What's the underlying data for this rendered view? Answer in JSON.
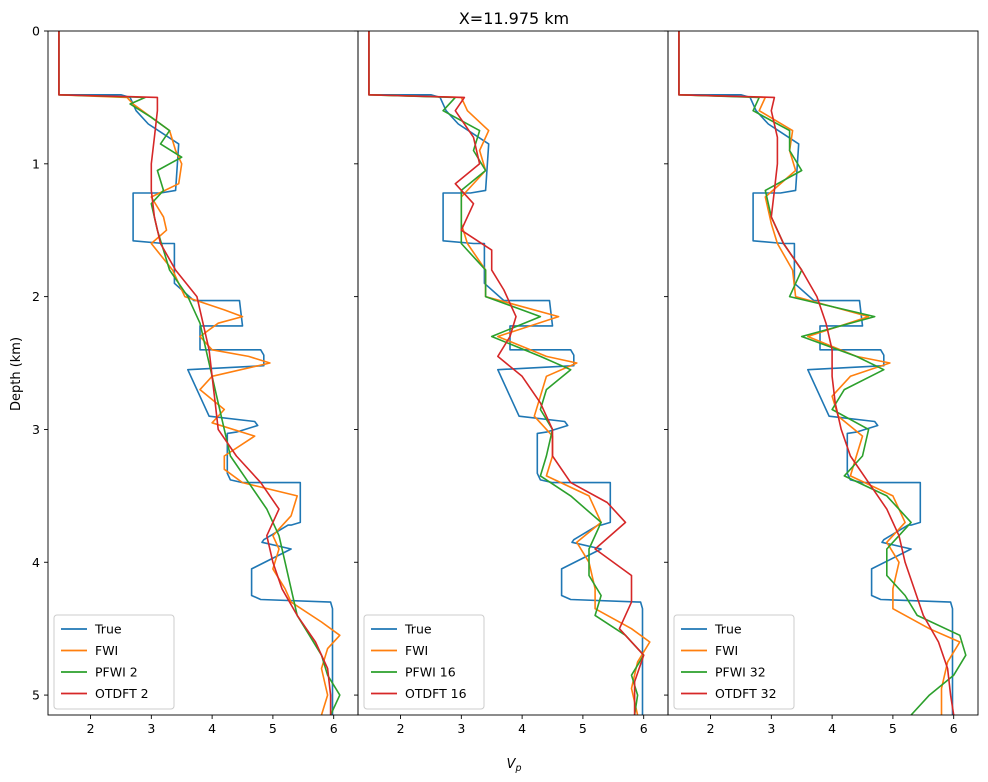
{
  "chart_data": {
    "type": "line",
    "title": "X=11.975 km",
    "xlabel": "V",
    "xlabel_subscript": "p",
    "ylabel": "Depth (km)",
    "xlim": [
      1.3,
      6.4
    ],
    "ylim": [
      5.15,
      0
    ],
    "xticks": [
      2,
      3,
      4,
      5,
      6
    ],
    "yticks": [
      0,
      1,
      2,
      3,
      4,
      5
    ],
    "grid": false,
    "legend_position": "lower-left",
    "colors": {
      "True": "#1f77b4",
      "FWI": "#ff7f0e",
      "PFWI": "#2ca02c",
      "OTDFT": "#d62728"
    },
    "panels": [
      {
        "series": [
          {
            "name": "True",
            "color": "#1f77b4",
            "depth": [
              0,
              0.48,
              0.48,
              0.5,
              0.6,
              0.7,
              0.85,
              0.85,
              1.2,
              1.22,
              1.22,
              1.58,
              1.6,
              1.6,
              1.9,
              2.03,
              2.03,
              2.22,
              2.22,
              2.4,
              2.4,
              2.44,
              2.52,
              2.55,
              2.7,
              2.9,
              2.94,
              2.97,
              3.02,
              3.03,
              3.33,
              3.38,
              3.4,
              3.4,
              3.7,
              3.72,
              3.72,
              3.83,
              3.85,
              3.9,
              4.05,
              4.25,
              4.28,
              4.3,
              4.35,
              5.15
            ],
            "vp": [
              1.48,
              1.48,
              2.5,
              2.65,
              2.75,
              2.95,
              3.45,
              3.45,
              3.4,
              3.15,
              2.7,
              2.7,
              3.2,
              3.38,
              3.38,
              3.7,
              4.45,
              4.5,
              3.8,
              3.8,
              4.8,
              4.85,
              4.85,
              3.6,
              3.75,
              3.95,
              4.7,
              4.75,
              4.4,
              4.25,
              4.25,
              4.3,
              4.5,
              5.45,
              5.45,
              5.3,
              5.25,
              4.85,
              4.82,
              5.3,
              4.65,
              4.65,
              4.8,
              5.95,
              5.98,
              5.98
            ]
          },
          {
            "name": "FWI",
            "color": "#ff7f0e",
            "depth": [
              0,
              0.48,
              0.5,
              0.55,
              0.65,
              0.75,
              0.9,
              1.0,
              1.15,
              1.25,
              1.4,
              1.5,
              1.6,
              1.8,
              2.0,
              2.1,
              2.15,
              2.2,
              2.3,
              2.4,
              2.45,
              2.5,
              2.6,
              2.7,
              2.85,
              2.95,
              3.05,
              3.2,
              3.3,
              3.4,
              3.5,
              3.65,
              3.8,
              3.9,
              4.05,
              4.2,
              4.3,
              4.45,
              4.55,
              4.65,
              4.8,
              5.0,
              5.15
            ],
            "vp": [
              1.48,
              1.48,
              2.6,
              2.7,
              3.0,
              3.3,
              3.4,
              3.5,
              3.45,
              3.0,
              3.2,
              3.25,
              3.0,
              3.35,
              3.55,
              4.2,
              4.5,
              4.1,
              3.8,
              4.0,
              4.6,
              4.95,
              4.0,
              3.8,
              4.2,
              4.0,
              4.7,
              4.2,
              4.2,
              4.5,
              5.4,
              5.3,
              5.0,
              5.1,
              5.0,
              5.2,
              5.3,
              5.8,
              6.1,
              5.9,
              5.8,
              5.9,
              5.8
            ]
          },
          {
            "name": "PFWI 2",
            "color": "#2ca02c",
            "depth": [
              0,
              0.48,
              0.5,
              0.55,
              0.65,
              0.75,
              0.85,
              0.95,
              1.05,
              1.2,
              1.3,
              1.5,
              1.65,
              1.8,
              2.0,
              2.2,
              2.4,
              2.6,
              2.8,
              3.0,
              3.2,
              3.4,
              3.6,
              3.8,
              4.0,
              4.2,
              4.4,
              4.55,
              4.7,
              4.85,
              5.0,
              5.15
            ],
            "vp": [
              1.48,
              1.48,
              2.9,
              2.65,
              3.0,
              3.3,
              3.15,
              3.5,
              3.1,
              3.2,
              3.0,
              3.1,
              3.2,
              3.3,
              3.6,
              3.8,
              3.9,
              4.0,
              4.1,
              4.2,
              4.3,
              4.6,
              4.9,
              5.1,
              5.2,
              5.3,
              5.4,
              5.6,
              5.8,
              5.9,
              6.1,
              5.95
            ]
          },
          {
            "name": "OTDFT 2",
            "color": "#d62728",
            "depth": [
              0,
              0.48,
              0.5,
              0.6,
              0.8,
              1.0,
              1.2,
              1.4,
              1.6,
              1.8,
              2.0,
              2.2,
              2.4,
              2.6,
              2.8,
              3.0,
              3.2,
              3.4,
              3.6,
              3.8,
              4.0,
              4.2,
              4.4,
              4.6,
              4.8,
              5.0,
              5.15
            ],
            "vp": [
              1.48,
              1.48,
              3.1,
              3.1,
              3.05,
              3.0,
              3.0,
              3.05,
              3.15,
              3.4,
              3.75,
              3.85,
              3.95,
              4.0,
              4.05,
              4.1,
              4.4,
              4.8,
              5.1,
              4.9,
              5.0,
              5.15,
              5.4,
              5.7,
              5.9,
              5.95,
              5.95
            ]
          }
        ]
      },
      {
        "series": [
          {
            "name": "True",
            "color": "#1f77b4",
            "depth": [
              0,
              0.48,
              0.48,
              0.5,
              0.6,
              0.7,
              0.85,
              0.85,
              1.2,
              1.22,
              1.22,
              1.58,
              1.6,
              1.6,
              1.9,
              2.03,
              2.03,
              2.22,
              2.22,
              2.4,
              2.4,
              2.44,
              2.52,
              2.55,
              2.7,
              2.9,
              2.94,
              2.97,
              3.02,
              3.03,
              3.33,
              3.38,
              3.4,
              3.4,
              3.7,
              3.72,
              3.72,
              3.83,
              3.85,
              3.9,
              4.05,
              4.25,
              4.28,
              4.3,
              4.35,
              5.15
            ],
            "vp": [
              1.48,
              1.48,
              2.5,
              2.65,
              2.75,
              2.95,
              3.45,
              3.45,
              3.4,
              3.15,
              2.7,
              2.7,
              3.2,
              3.38,
              3.38,
              3.7,
              4.45,
              4.5,
              3.8,
              3.8,
              4.8,
              4.85,
              4.85,
              3.6,
              3.75,
              3.95,
              4.7,
              4.75,
              4.4,
              4.25,
              4.25,
              4.3,
              4.5,
              5.45,
              5.45,
              5.3,
              5.25,
              4.85,
              4.82,
              5.3,
              4.65,
              4.65,
              4.8,
              5.95,
              5.98,
              5.98
            ]
          },
          {
            "name": "FWI",
            "color": "#ff7f0e",
            "depth": [
              0,
              0.48,
              0.5,
              0.6,
              0.75,
              0.9,
              1.05,
              1.25,
              1.45,
              1.6,
              1.8,
              2.0,
              2.15,
              2.3,
              2.45,
              2.5,
              2.6,
              2.75,
              2.9,
              3.05,
              3.2,
              3.35,
              3.5,
              3.7,
              3.85,
              4.0,
              4.2,
              4.35,
              4.5,
              4.6,
              4.75,
              4.95,
              5.15
            ],
            "vp": [
              1.48,
              1.48,
              3.0,
              3.1,
              3.45,
              3.3,
              3.4,
              3.0,
              3.0,
              3.1,
              3.4,
              3.4,
              4.6,
              3.6,
              4.4,
              4.9,
              4.4,
              4.3,
              4.2,
              4.5,
              4.5,
              4.4,
              5.1,
              5.3,
              4.9,
              5.1,
              5.2,
              5.2,
              5.8,
              6.1,
              5.9,
              5.8,
              5.9
            ]
          },
          {
            "name": "PFWI 16",
            "color": "#2ca02c",
            "depth": [
              0,
              0.48,
              0.5,
              0.6,
              0.75,
              0.9,
              1.05,
              1.2,
              1.4,
              1.6,
              1.8,
              2.0,
              2.15,
              2.3,
              2.45,
              2.55,
              2.7,
              2.85,
              3.0,
              3.2,
              3.35,
              3.5,
              3.7,
              3.9,
              4.1,
              4.25,
              4.4,
              4.55,
              4.7,
              4.85,
              5.0,
              5.15
            ],
            "vp": [
              1.48,
              1.48,
              2.9,
              2.7,
              3.3,
              3.2,
              3.4,
              3.0,
              3.0,
              3.0,
              3.4,
              3.4,
              4.3,
              3.5,
              4.3,
              4.8,
              4.4,
              4.3,
              4.5,
              4.4,
              4.3,
              4.8,
              5.3,
              5.1,
              5.1,
              5.3,
              5.2,
              5.7,
              6.0,
              5.8,
              5.9,
              5.85
            ]
          },
          {
            "name": "OTDFT 16",
            "color": "#d62728",
            "depth": [
              0,
              0.48,
              0.5,
              0.6,
              0.8,
              1.0,
              1.15,
              1.3,
              1.5,
              1.65,
              1.8,
              1.95,
              2.15,
              2.3,
              2.45,
              2.6,
              2.8,
              3.0,
              3.2,
              3.4,
              3.55,
              3.7,
              3.9,
              4.1,
              4.3,
              4.5,
              4.7,
              4.9,
              5.15
            ],
            "vp": [
              1.48,
              1.48,
              3.05,
              2.9,
              3.2,
              3.3,
              2.9,
              3.2,
              3.0,
              3.5,
              3.5,
              3.7,
              3.9,
              3.8,
              3.6,
              4.0,
              4.3,
              4.5,
              4.5,
              4.8,
              5.4,
              5.7,
              5.2,
              5.8,
              5.8,
              5.6,
              6.0,
              5.85,
              5.85
            ]
          }
        ]
      },
      {
        "series": [
          {
            "name": "True",
            "color": "#1f77b4",
            "depth": [
              0,
              0.48,
              0.48,
              0.5,
              0.6,
              0.7,
              0.85,
              0.85,
              1.2,
              1.22,
              1.22,
              1.58,
              1.6,
              1.6,
              1.9,
              2.03,
              2.03,
              2.22,
              2.22,
              2.4,
              2.4,
              2.44,
              2.52,
              2.55,
              2.7,
              2.9,
              2.94,
              2.97,
              3.02,
              3.03,
              3.33,
              3.38,
              3.4,
              3.4,
              3.7,
              3.72,
              3.72,
              3.83,
              3.85,
              3.9,
              4.05,
              4.25,
              4.28,
              4.3,
              4.35,
              5.15
            ],
            "vp": [
              1.48,
              1.48,
              2.5,
              2.65,
              2.75,
              2.95,
              3.45,
              3.45,
              3.4,
              3.15,
              2.7,
              2.7,
              3.2,
              3.38,
              3.38,
              3.7,
              4.45,
              4.5,
              3.8,
              3.8,
              4.8,
              4.85,
              4.85,
              3.6,
              3.75,
              3.95,
              4.7,
              4.75,
              4.4,
              4.25,
              4.25,
              4.3,
              4.5,
              5.45,
              5.45,
              5.3,
              5.25,
              4.85,
              4.82,
              5.3,
              4.65,
              4.65,
              4.8,
              5.95,
              5.98,
              5.98
            ]
          },
          {
            "name": "FWI",
            "color": "#ff7f0e",
            "depth": [
              0,
              0.48,
              0.5,
              0.6,
              0.75,
              0.9,
              1.05,
              1.25,
              1.45,
              1.6,
              1.8,
              2.0,
              2.15,
              2.3,
              2.45,
              2.5,
              2.6,
              2.75,
              2.9,
              3.05,
              3.2,
              3.35,
              3.5,
              3.7,
              3.85,
              4.0,
              4.2,
              4.35,
              4.5,
              4.6,
              4.75,
              4.95,
              5.15
            ],
            "vp": [
              1.48,
              1.48,
              2.9,
              2.8,
              3.35,
              3.3,
              3.4,
              2.9,
              3.0,
              3.1,
              3.35,
              3.4,
              4.6,
              3.6,
              4.4,
              4.95,
              4.3,
              4.0,
              4.1,
              4.5,
              4.4,
              4.3,
              5.0,
              5.2,
              4.9,
              5.1,
              5.0,
              5.0,
              5.6,
              6.1,
              5.9,
              5.8,
              5.8
            ]
          },
          {
            "name": "PFWI 32",
            "color": "#2ca02c",
            "depth": [
              0,
              0.48,
              0.5,
              0.6,
              0.75,
              0.9,
              1.05,
              1.2,
              1.4,
              1.6,
              1.8,
              2.0,
              2.15,
              2.3,
              2.45,
              2.55,
              2.7,
              2.85,
              3.0,
              3.2,
              3.35,
              3.5,
              3.7,
              3.9,
              4.1,
              4.25,
              4.4,
              4.55,
              4.7,
              4.85,
              5.0,
              5.15
            ],
            "vp": [
              1.48,
              1.48,
              2.8,
              2.7,
              3.3,
              3.3,
              3.5,
              2.9,
              3.0,
              3.2,
              3.5,
              3.3,
              4.7,
              3.5,
              4.4,
              4.85,
              4.2,
              4.0,
              4.6,
              4.5,
              4.2,
              4.9,
              5.3,
              4.9,
              4.9,
              5.2,
              5.4,
              6.1,
              6.2,
              6.0,
              5.6,
              5.3
            ]
          },
          {
            "name": "OTDFT 32",
            "color": "#d62728",
            "depth": [
              0,
              0.48,
              0.5,
              0.6,
              0.8,
              1.0,
              1.2,
              1.4,
              1.6,
              1.8,
              2.0,
              2.2,
              2.4,
              2.6,
              2.8,
              3.0,
              3.2,
              3.4,
              3.6,
              3.8,
              4.0,
              4.2,
              4.4,
              4.6,
              4.8,
              5.0,
              5.15
            ],
            "vp": [
              1.48,
              1.48,
              3.05,
              3.0,
              3.1,
              3.1,
              3.05,
              3.0,
              3.2,
              3.5,
              3.75,
              3.9,
              4.0,
              4.0,
              4.05,
              4.15,
              4.3,
              4.6,
              4.9,
              5.1,
              5.2,
              5.35,
              5.5,
              5.75,
              5.9,
              5.95,
              6.0
            ]
          }
        ]
      }
    ]
  }
}
